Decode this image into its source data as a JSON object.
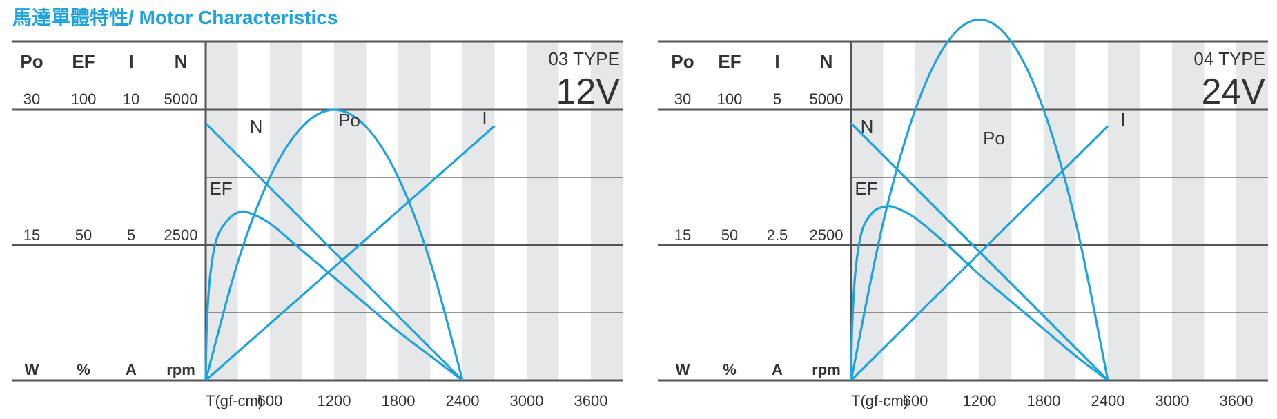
{
  "title": "馬達單體特性/ Motor Characteristics",
  "colors": {
    "curve": "#1ea3dd",
    "stripe": "#e6e7e9",
    "grid": "#555555",
    "text": "#333333",
    "title": "#1ea3dd"
  },
  "chart_data": [
    {
      "type": "line",
      "type_label": "03 TYPE",
      "voltage_label": "12V",
      "xlabel": "T(gf-cm)",
      "x_ticks": [
        "600",
        "1200",
        "1800",
        "2400",
        "3000",
        "3600"
      ],
      "xlim": [
        0,
        3900
      ],
      "grid": true,
      "columns": [
        {
          "header": "Po",
          "unit": "W",
          "max": "30",
          "mid": "15"
        },
        {
          "header": "EF",
          "unit": "%",
          "max": "100",
          "mid": "50"
        },
        {
          "header": "I",
          "unit": "A",
          "max": "10",
          "mid": "5"
        },
        {
          "header": "N",
          "unit": "rpm",
          "max": "5000",
          "mid": "2500"
        }
      ],
      "series": [
        {
          "name": "N",
          "x": [
            0,
            2400
          ],
          "y": [
            4750,
            0
          ]
        },
        {
          "name": "I",
          "x": [
            0,
            2700
          ],
          "y": [
            0,
            9.4
          ]
        },
        {
          "name": "Po",
          "x": [
            0,
            300,
            600,
            900,
            1200,
            1500,
            1800,
            2100,
            2400
          ],
          "y": [
            0,
            13.1,
            22.5,
            28.1,
            30,
            28.1,
            22.5,
            13.1,
            0
          ]
        },
        {
          "name": "EF",
          "x": [
            0,
            10,
            40,
            100,
            200,
            300,
            400,
            600,
            900,
            1200,
            1500,
            1800,
            2100,
            2400
          ],
          "y": [
            0,
            20,
            38,
            52,
            59,
            62,
            62,
            58,
            48,
            38,
            28,
            18,
            9,
            0
          ]
        }
      ]
    },
    {
      "type": "line",
      "type_label": "04 TYPE",
      "voltage_label": "24V",
      "xlabel": "T(gf-cm)",
      "x_ticks": [
        "600",
        "1200",
        "1800",
        "2400",
        "3000",
        "3600"
      ],
      "xlim": [
        0,
        3900
      ],
      "grid": true,
      "columns": [
        {
          "header": "Po",
          "unit": "W",
          "max": "30",
          "mid": "15"
        },
        {
          "header": "EF",
          "unit": "%",
          "max": "100",
          "mid": "50"
        },
        {
          "header": "I",
          "unit": "A",
          "max": "5",
          "mid": "2.5"
        },
        {
          "header": "N",
          "unit": "rpm",
          "max": "5000",
          "mid": "2500"
        }
      ],
      "series": [
        {
          "name": "N",
          "x": [
            0,
            2400
          ],
          "y": [
            4750,
            0
          ]
        },
        {
          "name": "I",
          "x": [
            0,
            2400
          ],
          "y": [
            0,
            4.7
          ]
        },
        {
          "name": "Po",
          "x": [
            0,
            300,
            600,
            900,
            1200,
            1500,
            1800,
            2100,
            2400
          ],
          "y": [
            0,
            17.5,
            30,
            37.5,
            40,
            37.5,
            30,
            17.5,
            0
          ]
        },
        {
          "name": "EF",
          "x": [
            0,
            10,
            40,
            100,
            200,
            300,
            400,
            600,
            900,
            1200,
            1500,
            1800,
            2100,
            2400
          ],
          "y": [
            0,
            20,
            40,
            55,
            62,
            64,
            64,
            60,
            50,
            39,
            29,
            19,
            9,
            0
          ]
        }
      ]
    }
  ]
}
